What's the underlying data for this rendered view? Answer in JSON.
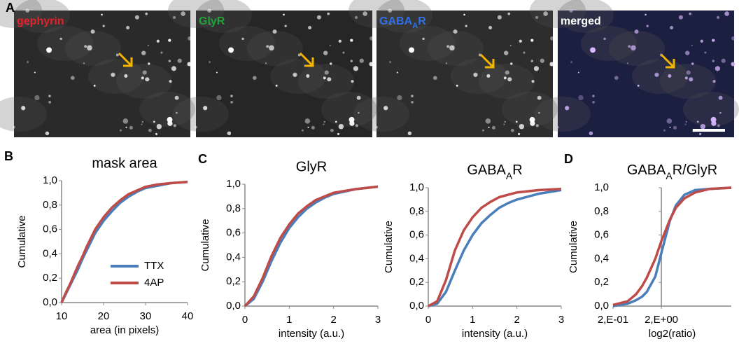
{
  "figure": {
    "panel_labels": [
      "A",
      "B",
      "C",
      "D"
    ],
    "images": [
      {
        "label": "gephyrin",
        "color": "#e8202a"
      },
      {
        "label": "GlyR",
        "color": "#1fa23a"
      },
      {
        "label": [
          "GABA",
          "A",
          "R"
        ],
        "color": "#2f6fe8"
      },
      {
        "label": "merged",
        "color": "#ffffff"
      }
    ]
  },
  "chart_data": [
    {
      "type": "line",
      "title": "mask area",
      "xlabel": "area (in pixels)",
      "ylabel": "Cumulative",
      "x": [
        10,
        11,
        12,
        13,
        14,
        15,
        16,
        17,
        18,
        19,
        20,
        22,
        24,
        26,
        28,
        30,
        33,
        36,
        40
      ],
      "series": [
        {
          "name": "TTX",
          "color": "#4a7ebb",
          "values": [
            0,
            0.07,
            0.14,
            0.21,
            0.28,
            0.36,
            0.43,
            0.5,
            0.57,
            0.62,
            0.67,
            0.75,
            0.82,
            0.87,
            0.91,
            0.94,
            0.96,
            0.98,
            0.99
          ]
        },
        {
          "name": "4AP",
          "color": "#be4b48",
          "values": [
            0,
            0.08,
            0.15,
            0.23,
            0.31,
            0.38,
            0.46,
            0.53,
            0.6,
            0.65,
            0.7,
            0.78,
            0.84,
            0.89,
            0.92,
            0.95,
            0.97,
            0.98,
            0.99
          ]
        }
      ],
      "xlim": [
        10,
        40
      ],
      "xticks": [
        10,
        20,
        30,
        40
      ],
      "ylim": [
        0,
        1
      ],
      "yticks": [
        {
          "value": 0,
          "label": "0,0"
        },
        {
          "value": 0.2,
          "label": "0,2"
        },
        {
          "value": 0.4,
          "label": "0,4"
        },
        {
          "value": 0.6,
          "label": "0,6"
        },
        {
          "value": 0.8,
          "label": "0,8"
        },
        {
          "value": 1,
          "label": "1,0"
        }
      ],
      "legend": "lower right"
    },
    {
      "type": "line",
      "title": "GlyR",
      "xlabel": "intensity (a.u.)",
      "ylabel": "Cumulative",
      "x": [
        0,
        0.2,
        0.4,
        0.6,
        0.8,
        1.0,
        1.2,
        1.4,
        1.6,
        1.8,
        2.0,
        2.5,
        3.0
      ],
      "series": [
        {
          "color": "#4a7ebb",
          "values": [
            0,
            0.06,
            0.2,
            0.37,
            0.52,
            0.64,
            0.73,
            0.8,
            0.85,
            0.89,
            0.92,
            0.96,
            0.98
          ]
        },
        {
          "color": "#be4b48",
          "values": [
            0,
            0.08,
            0.23,
            0.41,
            0.56,
            0.67,
            0.76,
            0.82,
            0.87,
            0.9,
            0.93,
            0.96,
            0.98
          ]
        }
      ],
      "xlim": [
        0,
        3
      ],
      "xticks": [
        0,
        1,
        2,
        3
      ],
      "ylim": [
        0,
        1
      ],
      "yticks": [
        {
          "value": 0,
          "label": "0,0"
        },
        {
          "value": 0.2,
          "label": "0,2"
        },
        {
          "value": 0.4,
          "label": "0,4"
        },
        {
          "value": 0.6,
          "label": "0,6"
        },
        {
          "value": 0.8,
          "label": "0,8"
        },
        {
          "value": 1,
          "label": "1,0"
        }
      ]
    },
    {
      "type": "line",
      "title": [
        "GABA",
        "A",
        "R"
      ],
      "xlabel": "intensity (a.u.)",
      "ylabel": "Cumulative",
      "x": [
        0,
        0.2,
        0.4,
        0.6,
        0.8,
        1.0,
        1.2,
        1.4,
        1.6,
        1.8,
        2.0,
        2.5,
        3.0
      ],
      "series": [
        {
          "color": "#4a7ebb",
          "values": [
            0,
            0.02,
            0.12,
            0.3,
            0.47,
            0.6,
            0.7,
            0.77,
            0.83,
            0.87,
            0.9,
            0.95,
            0.98
          ]
        },
        {
          "color": "#be4b48",
          "values": [
            0,
            0.04,
            0.22,
            0.47,
            0.64,
            0.75,
            0.83,
            0.88,
            0.92,
            0.94,
            0.96,
            0.98,
            0.99
          ]
        }
      ],
      "xlim": [
        0,
        3
      ],
      "xticks": [
        0,
        1,
        2,
        3
      ],
      "ylim": [
        0,
        1
      ],
      "yticks": [
        {
          "value": 0,
          "label": "0,0"
        },
        {
          "value": 0.2,
          "label": "0,2"
        },
        {
          "value": 0.4,
          "label": "0,4"
        },
        {
          "value": 0.6,
          "label": "0,6"
        },
        {
          "value": 0.8,
          "label": "0,8"
        },
        {
          "value": 1,
          "label": "1,0"
        }
      ]
    },
    {
      "type": "line",
      "title": [
        "GABA",
        "A",
        "R/GlyR"
      ],
      "xlabel": "log2(ratio)",
      "ylabel": "Cumulative",
      "x": [
        0.2,
        0.4,
        0.6,
        0.8,
        1,
        1.5,
        2,
        3,
        4,
        6,
        10,
        20,
        56
      ],
      "series": [
        {
          "color": "#4a7ebb",
          "values": [
            0,
            0.02,
            0.05,
            0.08,
            0.12,
            0.25,
            0.45,
            0.72,
            0.85,
            0.94,
            0.98,
            0.99,
            1.0
          ]
        },
        {
          "color": "#be4b48",
          "values": [
            0.01,
            0.04,
            0.1,
            0.17,
            0.24,
            0.4,
            0.55,
            0.73,
            0.83,
            0.91,
            0.96,
            0.99,
            1.0
          ]
        }
      ],
      "xscale": "log",
      "xlim": [
        0.2,
        56
      ],
      "xticks": [
        {
          "value": 0.2,
          "label": "2,E-01"
        },
        {
          "value": 2,
          "label": "2,E+00"
        }
      ],
      "y_axis_at": 2,
      "ylim": [
        0,
        1
      ],
      "yticks": [
        {
          "value": 0,
          "label": "0,0"
        },
        {
          "value": 0.2,
          "label": "0,2"
        },
        {
          "value": 0.4,
          "label": "0,4"
        },
        {
          "value": 0.6,
          "label": "0,6"
        },
        {
          "value": 0.8,
          "label": "0,8"
        },
        {
          "value": 1,
          "label": "1,0"
        }
      ]
    }
  ]
}
